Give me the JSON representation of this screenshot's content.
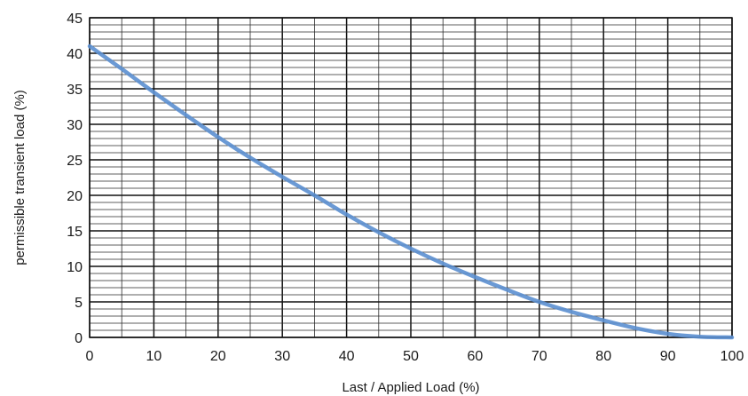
{
  "chart_data": {
    "type": "line",
    "title": "",
    "xlabel": "Last / Applied Load (%)",
    "ylabel": "permissible transient load (%)",
    "xlim": [
      0,
      100
    ],
    "ylim": [
      0,
      45
    ],
    "x_ticks": [
      "0",
      "10",
      "20",
      "30",
      "40",
      "50",
      "60",
      "70",
      "80",
      "90",
      "100"
    ],
    "y_ticks": [
      "0",
      "5",
      "10",
      "15",
      "20",
      "25",
      "30",
      "35",
      "40",
      "45"
    ],
    "grid": true,
    "legend": "none",
    "series": [
      {
        "color": "#5b8fd0",
        "x": [
          0,
          5,
          10,
          15,
          20,
          25,
          30,
          35,
          40,
          45,
          50,
          55,
          60,
          65,
          70,
          75,
          80,
          85,
          90,
          95,
          100
        ],
        "y": [
          41,
          37.8,
          34.5,
          31.3,
          28.2,
          25.3,
          22.6,
          20,
          17.3,
          14.8,
          12.5,
          10.4,
          8.5,
          6.7,
          5,
          3.6,
          2.4,
          1.3,
          0.5,
          0.1,
          0
        ]
      }
    ]
  }
}
